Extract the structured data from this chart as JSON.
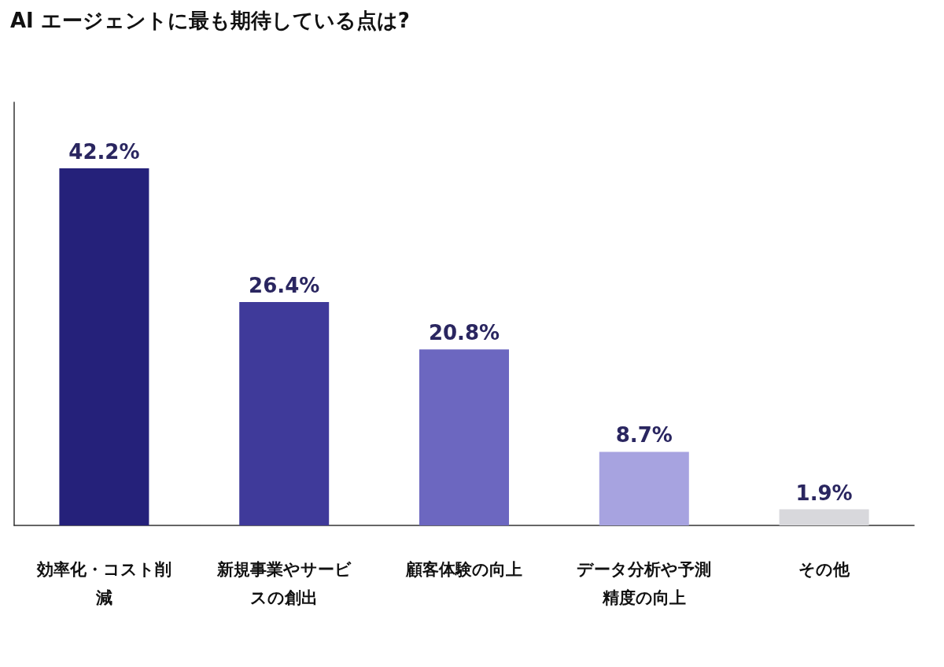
{
  "chart_data": {
    "type": "bar",
    "title": "AI エージェントに最も期待している点は?",
    "categories": [
      "効率化・コスト削減",
      "新規事業やサービスの創出",
      "顧客体験の向上",
      "データ分析や予測精度の向上",
      "その他"
    ],
    "values": [
      42.2,
      26.4,
      20.8,
      8.7,
      1.9
    ],
    "colors": [
      "#25217a",
      "#3f3a9a",
      "#6c67c0",
      "#a7a3e0",
      "#d8d8dc"
    ],
    "value_labels": [
      "42.2%",
      "26.4%",
      "20.8%",
      "8.7%",
      "1.9%"
    ],
    "ylim": [
      0,
      50
    ],
    "tick_labels": "x",
    "grid": false
  }
}
